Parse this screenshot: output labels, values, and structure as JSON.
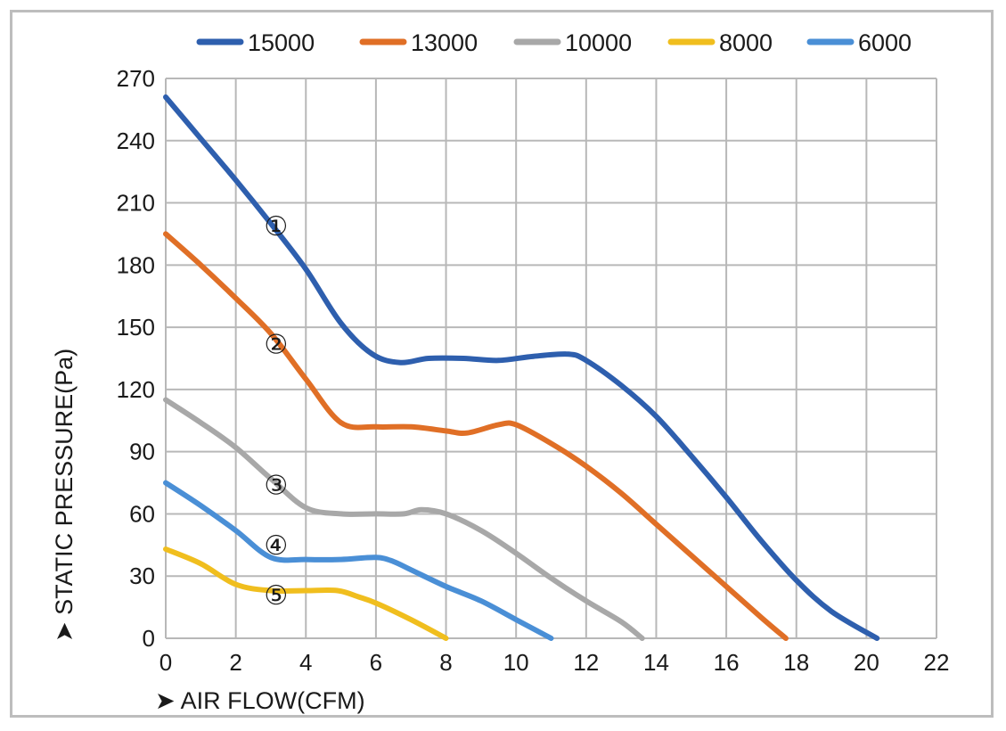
{
  "chart_data": {
    "type": "line",
    "xlabel": "AIR FLOW(CFM)",
    "ylabel": "STATIC PRESSURE(Pa)",
    "xlim": [
      0,
      22
    ],
    "ylim": [
      0,
      270
    ],
    "xticks": [
      "0",
      "2",
      "4",
      "6",
      "8",
      "10",
      "12",
      "14",
      "16",
      "18",
      "20",
      "22"
    ],
    "yticks": [
      "0",
      "30",
      "60",
      "90",
      "120",
      "150",
      "180",
      "210",
      "240",
      "270"
    ],
    "grid": true,
    "legend_position": "top",
    "series": [
      {
        "name": "15000",
        "color": "#2e5fae",
        "marker_label": "①",
        "marker_at": [
          3.1,
          200
        ],
        "points": [
          [
            0,
            261
          ],
          [
            1,
            241
          ],
          [
            2,
            221
          ],
          [
            3,
            200
          ],
          [
            4,
            178
          ],
          [
            5,
            152
          ],
          [
            5.9,
            137
          ],
          [
            6.7,
            133
          ],
          [
            7.5,
            135
          ],
          [
            8.5,
            135
          ],
          [
            9.5,
            134
          ],
          [
            10.5,
            136
          ],
          [
            11.5,
            137
          ],
          [
            12,
            134
          ],
          [
            13,
            122
          ],
          [
            14,
            107
          ],
          [
            15,
            88
          ],
          [
            16,
            68
          ],
          [
            17,
            47
          ],
          [
            18,
            28
          ],
          [
            19,
            13
          ],
          [
            20.3,
            0
          ]
        ]
      },
      {
        "name": "13000",
        "color": "#e06f26",
        "marker_label": "②",
        "marker_at": [
          3.1,
          143
        ],
        "points": [
          [
            0,
            195
          ],
          [
            1,
            180
          ],
          [
            2,
            164
          ],
          [
            3,
            147
          ],
          [
            4,
            125
          ],
          [
            5,
            104
          ],
          [
            6,
            102
          ],
          [
            7,
            102
          ],
          [
            8,
            100
          ],
          [
            8.6,
            99
          ],
          [
            9.5,
            103
          ],
          [
            10,
            103
          ],
          [
            11,
            94
          ],
          [
            12,
            83
          ],
          [
            13,
            70
          ],
          [
            14,
            55
          ],
          [
            15,
            40
          ],
          [
            16,
            25
          ],
          [
            17,
            10
          ],
          [
            17.7,
            0
          ]
        ]
      },
      {
        "name": "10000",
        "color": "#a8a8a8",
        "marker_label": "③",
        "marker_at": [
          3.1,
          75
        ],
        "points": [
          [
            0,
            115
          ],
          [
            1,
            104
          ],
          [
            2,
            92
          ],
          [
            3,
            77
          ],
          [
            4,
            63
          ],
          [
            5,
            60
          ],
          [
            6,
            60
          ],
          [
            6.8,
            60
          ],
          [
            7.3,
            62
          ],
          [
            8,
            60
          ],
          [
            9,
            52
          ],
          [
            10,
            41
          ],
          [
            11,
            29
          ],
          [
            12,
            18
          ],
          [
            13,
            8
          ],
          [
            13.6,
            0
          ]
        ]
      },
      {
        "name": "8000",
        "color": "#f0be1e",
        "marker_label": "⑤",
        "marker_at": [
          3.1,
          22
        ],
        "points": [
          [
            0,
            43
          ],
          [
            1,
            36
          ],
          [
            2,
            26
          ],
          [
            3,
            23
          ],
          [
            4,
            23
          ],
          [
            4.9,
            23
          ],
          [
            5.5,
            20
          ],
          [
            6,
            17
          ],
          [
            7,
            9
          ],
          [
            8,
            0
          ]
        ]
      },
      {
        "name": "6000",
        "color": "#4a8fd6",
        "marker_label": "④",
        "marker_at": [
          3.1,
          46
        ],
        "points": [
          [
            0,
            75
          ],
          [
            1,
            64
          ],
          [
            2,
            52
          ],
          [
            3,
            39
          ],
          [
            4,
            38
          ],
          [
            5,
            38
          ],
          [
            6,
            39
          ],
          [
            6.5,
            37
          ],
          [
            7,
            33
          ],
          [
            8,
            25
          ],
          [
            9,
            18
          ],
          [
            10,
            9
          ],
          [
            11,
            0
          ]
        ]
      }
    ]
  }
}
